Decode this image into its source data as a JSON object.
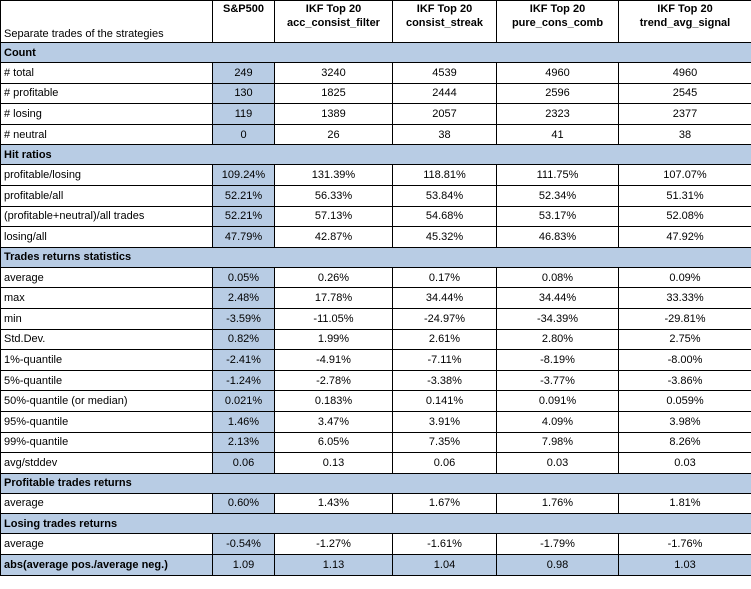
{
  "table": {
    "caption": "Separate trades of the strategies",
    "columns": [
      {
        "line1": "S&P500",
        "line2": ""
      },
      {
        "line1": "IKF Top 20",
        "line2": "acc_consist_filter"
      },
      {
        "line1": "IKF Top 20",
        "line2": "consist_streak"
      },
      {
        "line1": "IKF Top 20",
        "line2": "pure_cons_comb"
      },
      {
        "line1": "IKF Top 20",
        "line2": "trend_avg_signal"
      }
    ],
    "sections": [
      {
        "title": "Count",
        "rows": [
          {
            "label": "# total",
            "values": [
              "249",
              "3240",
              "4539",
              "4960",
              "4960"
            ]
          },
          {
            "label": "# profitable",
            "values": [
              "130",
              "1825",
              "2444",
              "2596",
              "2545"
            ]
          },
          {
            "label": "# losing",
            "values": [
              "119",
              "1389",
              "2057",
              "2323",
              "2377"
            ]
          },
          {
            "label": "# neutral",
            "values": [
              "0",
              "26",
              "38",
              "41",
              "38"
            ]
          }
        ]
      },
      {
        "title": "Hit ratios",
        "rows": [
          {
            "label": "profitable/losing",
            "values": [
              "109.24%",
              "131.39%",
              "118.81%",
              "111.75%",
              "107.07%"
            ]
          },
          {
            "label": "profitable/all",
            "values": [
              "52.21%",
              "56.33%",
              "53.84%",
              "52.34%",
              "51.31%"
            ]
          },
          {
            "label": "(profitable+neutral)/all trades",
            "values": [
              "52.21%",
              "57.13%",
              "54.68%",
              "53.17%",
              "52.08%"
            ]
          },
          {
            "label": "losing/all",
            "values": [
              "47.79%",
              "42.87%",
              "45.32%",
              "46.83%",
              "47.92%"
            ]
          }
        ]
      },
      {
        "title": "Trades returns statistics",
        "rows": [
          {
            "label": "average",
            "values": [
              "0.05%",
              "0.26%",
              "0.17%",
              "0.08%",
              "0.09%"
            ]
          },
          {
            "label": "max",
            "values": [
              "2.48%",
              "17.78%",
              "34.44%",
              "34.44%",
              "33.33%"
            ]
          },
          {
            "label": "min",
            "values": [
              "-3.59%",
              "-11.05%",
              "-24.97%",
              "-34.39%",
              "-29.81%"
            ]
          },
          {
            "label": "Std.Dev.",
            "values": [
              "0.82%",
              "1.99%",
              "2.61%",
              "2.80%",
              "2.75%"
            ]
          },
          {
            "label": "1%-quantile",
            "values": [
              "-2.41%",
              "-4.91%",
              "-7.11%",
              "-8.19%",
              "-8.00%"
            ]
          },
          {
            "label": "5%-quantile",
            "values": [
              "-1.24%",
              "-2.78%",
              "-3.38%",
              "-3.77%",
              "-3.86%"
            ]
          },
          {
            "label": "50%-quantile (or median)",
            "values": [
              "0.021%",
              "0.183%",
              "0.141%",
              "0.091%",
              "0.059%"
            ]
          },
          {
            "label": "95%-quantile",
            "values": [
              "1.46%",
              "3.47%",
              "3.91%",
              "4.09%",
              "3.98%"
            ]
          },
          {
            "label": "99%-quantile",
            "values": [
              "2.13%",
              "6.05%",
              "7.35%",
              "7.98%",
              "8.26%"
            ]
          },
          {
            "label": "avg/stddev",
            "values": [
              "0.06",
              "0.13",
              "0.06",
              "0.03",
              "0.03"
            ]
          }
        ]
      },
      {
        "title": "Profitable trades returns",
        "rows": [
          {
            "label": "average",
            "values": [
              "0.60%",
              "1.43%",
              "1.67%",
              "1.76%",
              "1.81%"
            ]
          }
        ]
      },
      {
        "title": "Losing trades returns",
        "rows": [
          {
            "label": "average",
            "values": [
              "-0.54%",
              "-1.27%",
              "-1.61%",
              "-1.79%",
              "-1.76%"
            ]
          }
        ]
      }
    ],
    "summary_row": {
      "label": "abs(average pos./average neg.)",
      "values": [
        "1.09",
        "1.13",
        "1.04",
        "0.98",
        "1.03"
      ]
    }
  },
  "colors": {
    "section_fill": "#b8cce4",
    "border": "#000000"
  }
}
